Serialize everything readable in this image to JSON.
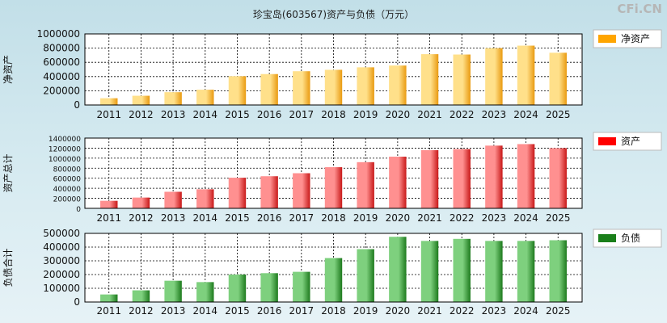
{
  "title": "珍宝岛(603567)资产与负债（万元）",
  "watermark": "CFi.CN",
  "chart_data": [
    {
      "type": "bar",
      "ylabel": "净资产",
      "legend": "净资产",
      "color_light": "#ffe08a",
      "color_dark": "#e99a10",
      "legend_color": "#ffa500",
      "categories": [
        "2011",
        "2012",
        "2013",
        "2014",
        "2015",
        "2016",
        "2017",
        "2018",
        "2019",
        "2020",
        "2021",
        "2022",
        "2023",
        "2024",
        "2025"
      ],
      "values": [
        95000,
        130000,
        180000,
        215000,
        405000,
        435000,
        475000,
        495000,
        530000,
        555000,
        715000,
        710000,
        800000,
        835000,
        735000
      ],
      "ylim": [
        0,
        1000000
      ],
      "yticks": [
        "0",
        "200000",
        "400000",
        "600000",
        "800000",
        "1000000"
      ],
      "grid": true
    },
    {
      "type": "bar",
      "ylabel": "资产总计",
      "legend": "资产",
      "color_light": "#ff9090",
      "color_dark": "#c81818",
      "legend_color": "#ff0000",
      "categories": [
        "2011",
        "2012",
        "2013",
        "2014",
        "2015",
        "2016",
        "2017",
        "2018",
        "2019",
        "2020",
        "2021",
        "2022",
        "2023",
        "2024",
        "2025"
      ],
      "values": [
        150000,
        215000,
        330000,
        380000,
        610000,
        640000,
        700000,
        820000,
        920000,
        1030000,
        1160000,
        1180000,
        1250000,
        1280000,
        1200000
      ],
      "ylim": [
        0,
        1400000
      ],
      "yticks": [
        "0",
        "200000",
        "400000",
        "600000",
        "800000",
        "1000000",
        "1200000",
        "1400000"
      ],
      "grid": true
    },
    {
      "type": "bar",
      "ylabel": "负债合计",
      "legend": "负债",
      "color_light": "#7ed07e",
      "color_dark": "#1d7a1d",
      "legend_color": "#1a7f1a",
      "categories": [
        "2011",
        "2012",
        "2013",
        "2014",
        "2015",
        "2016",
        "2017",
        "2018",
        "2019",
        "2020",
        "2021",
        "2022",
        "2023",
        "2024",
        "2025"
      ],
      "values": [
        55000,
        85000,
        155000,
        145000,
        200000,
        210000,
        220000,
        320000,
        385000,
        475000,
        445000,
        460000,
        445000,
        445000,
        450000
      ],
      "ylim": [
        0,
        500000
      ],
      "yticks": [
        "0",
        "100000",
        "200000",
        "300000",
        "400000",
        "500000"
      ],
      "grid": true
    }
  ]
}
